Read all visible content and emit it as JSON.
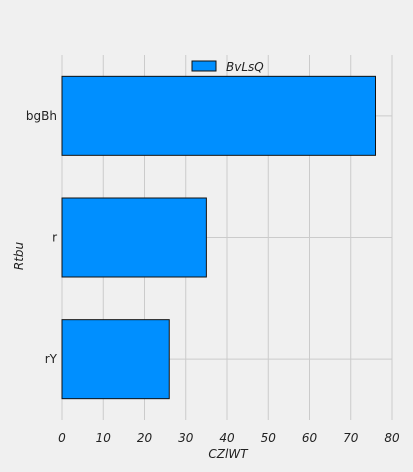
{
  "chart_data": {
    "type": "bar",
    "orientation": "horizontal",
    "categories": [
      "bgBh",
      "r",
      "rY"
    ],
    "series": [
      {
        "name": "BvLsQ",
        "values": [
          76,
          35,
          26
        ]
      }
    ],
    "xlabel": "CZlWT",
    "ylabel": "Rtbu",
    "xlim": [
      0,
      80
    ],
    "xticks": [
      0,
      10,
      20,
      30,
      40,
      50,
      60,
      70,
      80
    ],
    "grid": true,
    "legend_position": "top-center",
    "colors": {
      "bar": "#008fff",
      "bar_edge": "#111111",
      "background": "#f0f0f0",
      "grid": "#cbcbcb"
    }
  }
}
